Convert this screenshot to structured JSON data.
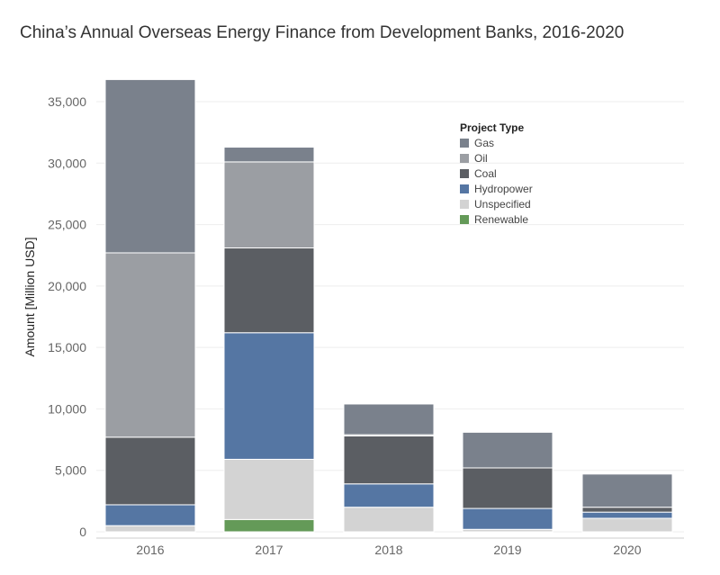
{
  "title": "China’s Annual Overseas Energy Finance from Development Banks, 2016-2020",
  "chart_data": {
    "type": "bar",
    "stacked": true,
    "title": "China’s Annual Overseas Energy Finance from Development Banks, 2016-2020",
    "xlabel": "",
    "ylabel": "Amount [Million USD]",
    "categories": [
      "2016",
      "2017",
      "2018",
      "2019",
      "2020"
    ],
    "ylim": [
      0,
      37000
    ],
    "yticks": [
      0,
      5000,
      10000,
      15000,
      20000,
      25000,
      30000,
      35000
    ],
    "ytick_labels": [
      "0",
      "5,000",
      "10,000",
      "15,000",
      "20,000",
      "25,000",
      "30,000",
      "35,000"
    ],
    "grid": true,
    "legend": {
      "title": "Project Type",
      "position": "top-right",
      "entries": [
        "Gas",
        "Oil",
        "Coal",
        "Hydropower",
        "Unspecified",
        "Renewable"
      ]
    },
    "stack_order": [
      "Renewable",
      "Unspecified",
      "Hydropower",
      "Coal",
      "Oil",
      "Gas"
    ],
    "series": [
      {
        "name": "Gas",
        "color": "#7a818c",
        "values": [
          14100,
          1200,
          2500,
          2900,
          2700
        ]
      },
      {
        "name": "Oil",
        "color": "#9b9ea3",
        "values": [
          15000,
          7000,
          100,
          0,
          0
        ]
      },
      {
        "name": "Coal",
        "color": "#5b5e63",
        "values": [
          5500,
          6900,
          3900,
          3300,
          400
        ]
      },
      {
        "name": "Hydropower",
        "color": "#5576a3",
        "values": [
          1700,
          10300,
          1900,
          1700,
          500
        ]
      },
      {
        "name": "Unspecified",
        "color": "#d3d3d3",
        "values": [
          500,
          4900,
          2000,
          200,
          1100
        ]
      },
      {
        "name": "Renewable",
        "color": "#649a58",
        "values": [
          0,
          1000,
          0,
          0,
          0
        ]
      }
    ]
  }
}
